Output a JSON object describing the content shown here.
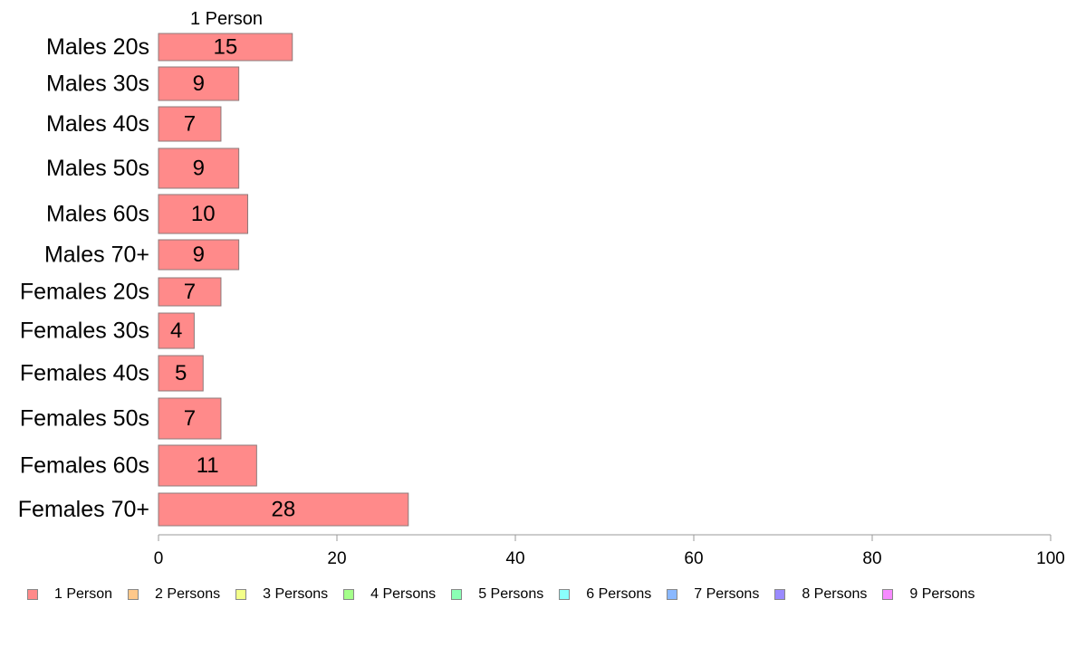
{
  "chart_data": {
    "type": "bar",
    "orientation": "horizontal",
    "categories": [
      "Males 20s",
      "Males 30s",
      "Males 40s",
      "Males 50s",
      "Males 60s",
      "Males 70+",
      "Females 20s",
      "Females 30s",
      "Females 40s",
      "Females 50s",
      "Females 60s",
      "Females 70+"
    ],
    "series": [
      {
        "name": "1 Person",
        "color": "#ff8a8a",
        "values": [
          15,
          9,
          7,
          9,
          10,
          9,
          7,
          4,
          5,
          7,
          11,
          28
        ]
      }
    ],
    "column_header": "1 Person",
    "xlim": [
      0,
      100
    ],
    "xticks": [
      0,
      20,
      40,
      60,
      80,
      100
    ],
    "grid": false,
    "legend_position": "bottom",
    "legend": [
      {
        "label": "1 Person",
        "color": "#ff8a8a"
      },
      {
        "label": "2 Persons",
        "color": "#ffc88a"
      },
      {
        "label": "3 Persons",
        "color": "#f3ff8a"
      },
      {
        "label": "4 Persons",
        "color": "#a4ff8a"
      },
      {
        "label": "5 Persons",
        "color": "#8affb4"
      },
      {
        "label": "6 Persons",
        "color": "#8afffc"
      },
      {
        "label": "7 Persons",
        "color": "#8ab8ff"
      },
      {
        "label": "8 Persons",
        "color": "#9a8aff"
      },
      {
        "label": "9 Persons",
        "color": "#f78aff"
      }
    ]
  }
}
